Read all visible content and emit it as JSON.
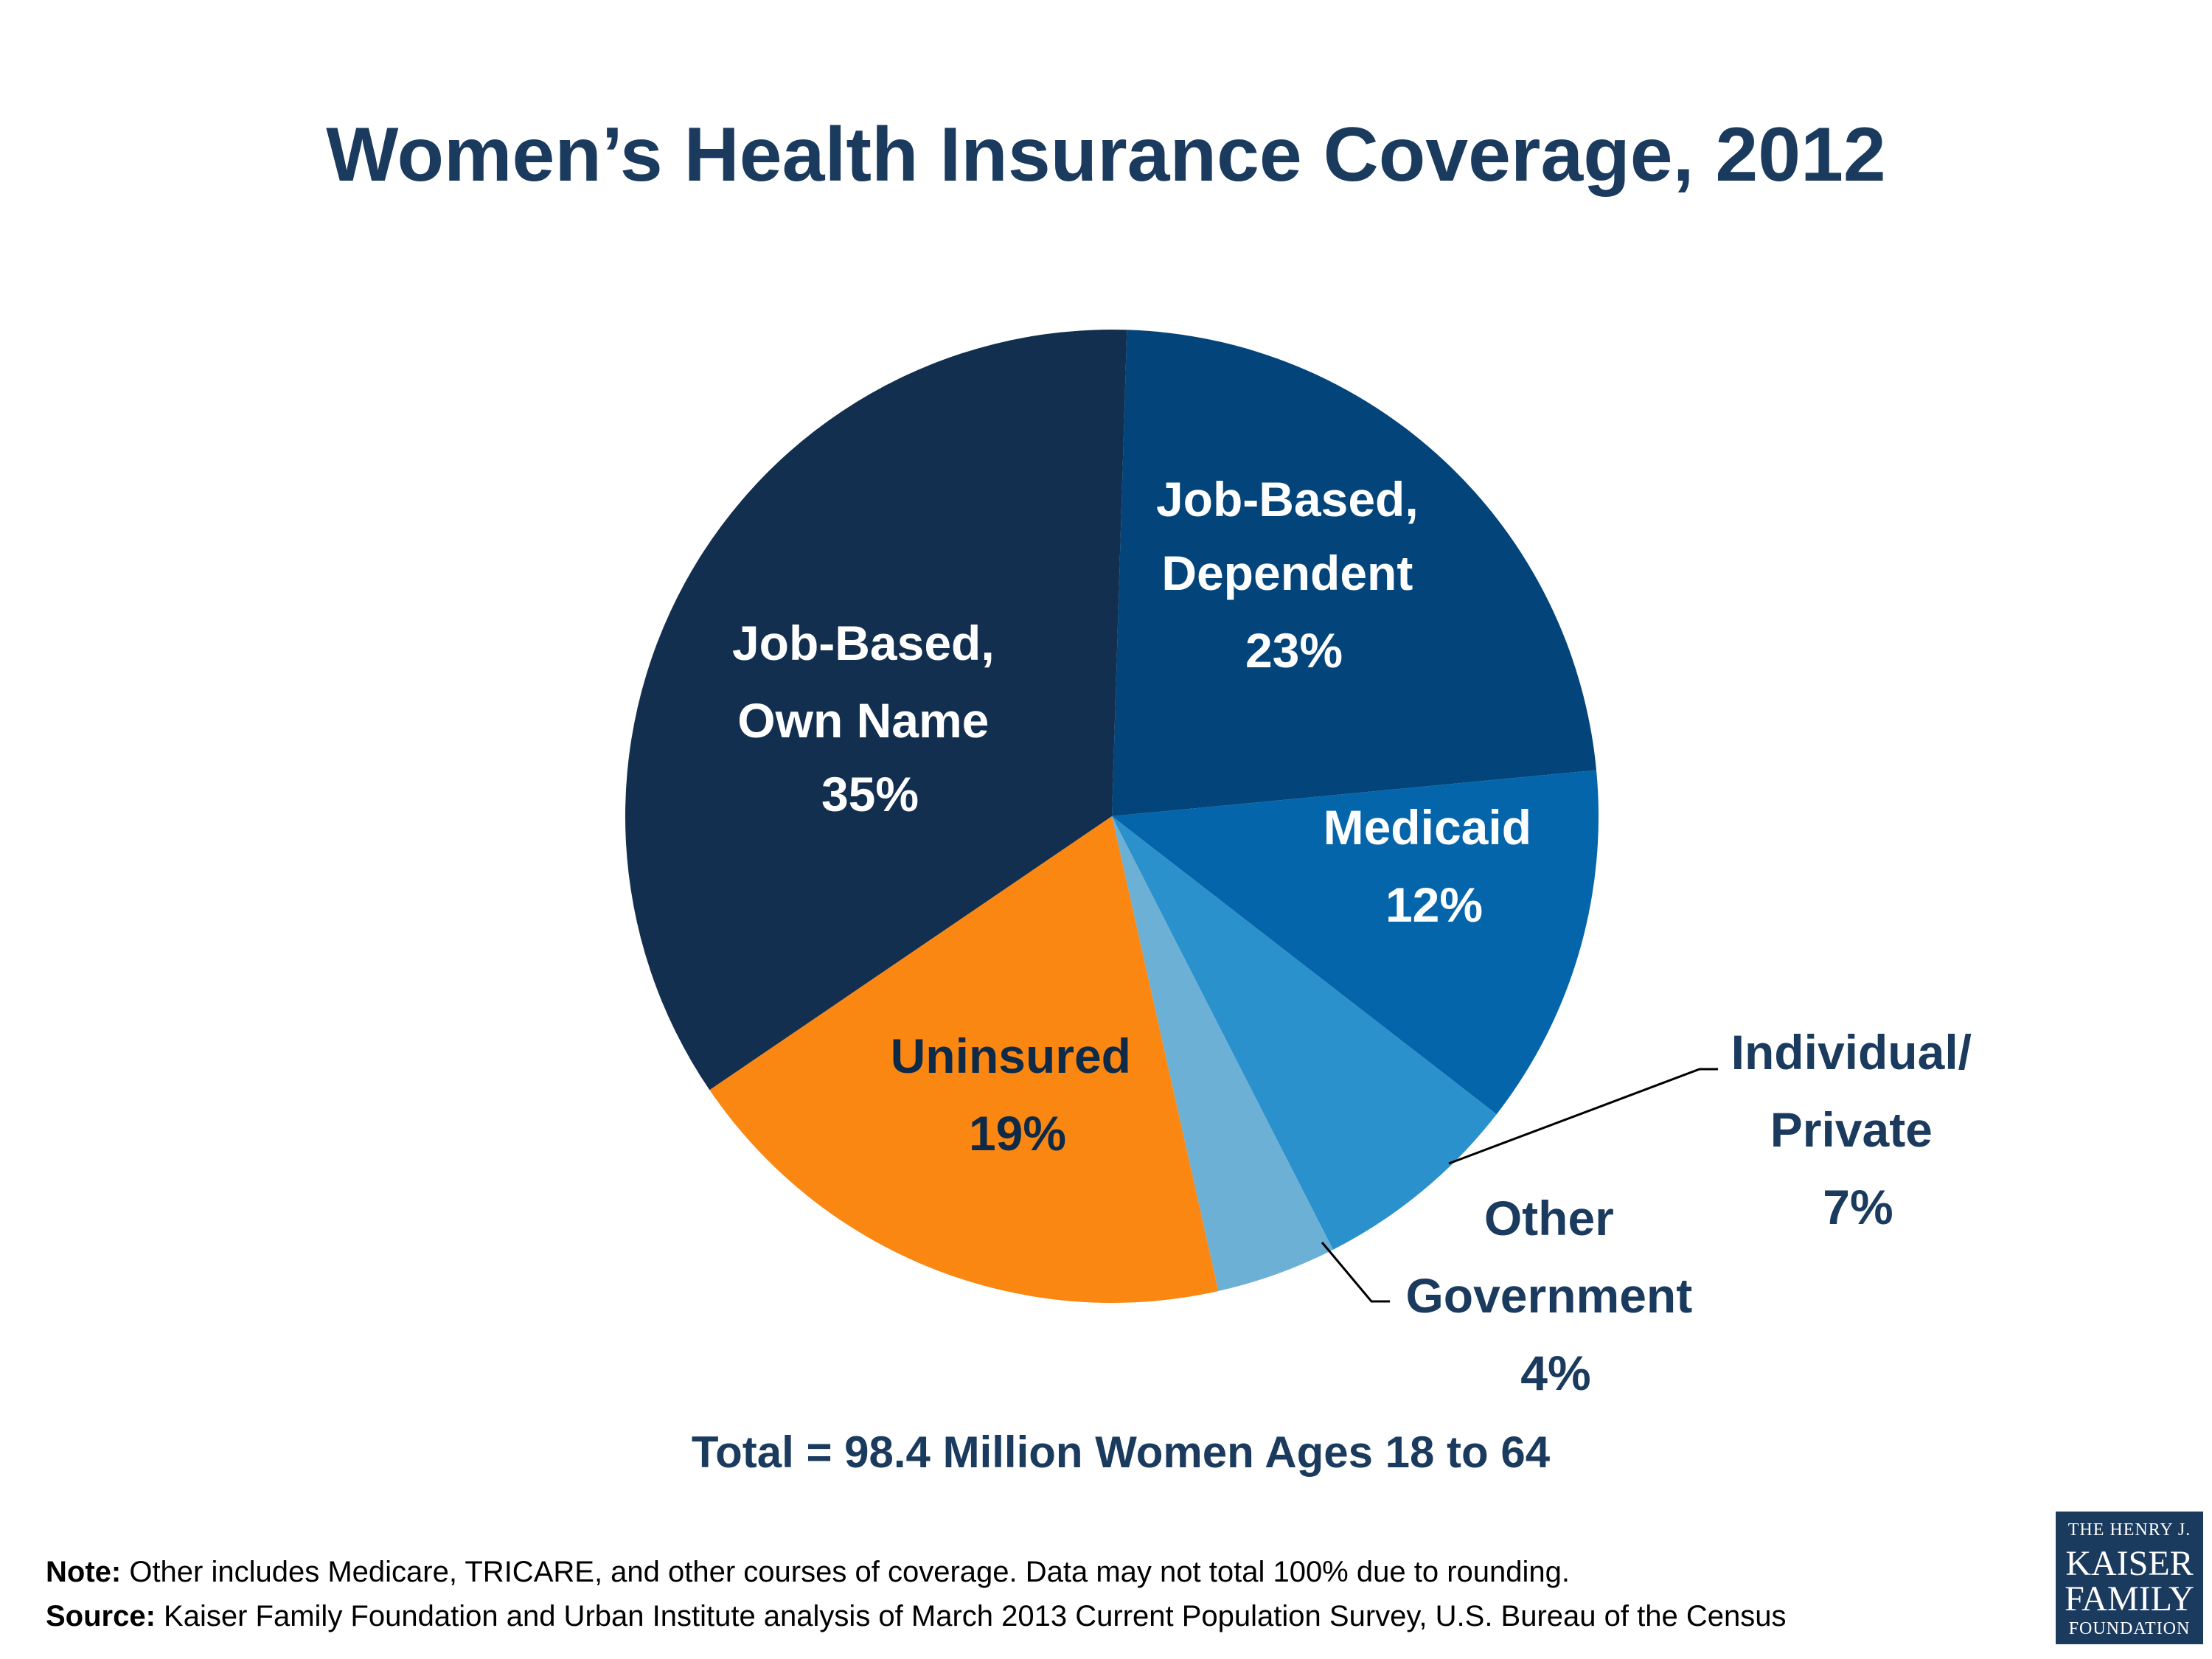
{
  "chart_data": {
    "type": "pie",
    "title": "Women’s Health Insurance Coverage, 2012",
    "categories": [
      "Job-Based, Dependent",
      "Medicaid",
      "Individual/ Private",
      "Other Government",
      "Uninsured",
      "Job-Based, Own Name"
    ],
    "values": [
      23,
      12,
      7,
      4,
      19,
      35
    ],
    "unit": "%",
    "slices": [
      {
        "name": "Job-Based, Dependent",
        "value": 23,
        "label_lines": [
          "Job-Based,",
          "Dependent",
          "23%"
        ],
        "color": "#03457a"
      },
      {
        "name": "Medicaid",
        "value": 12,
        "label_lines": [
          "Medicaid",
          "12%"
        ],
        "color": "#0565ab"
      },
      {
        "name": "Individual/Private",
        "value": 7,
        "label_lines": [
          "Individual/",
          "Private",
          "7%"
        ],
        "color": "#2a91cd"
      },
      {
        "name": "Other Government",
        "value": 4,
        "label_lines": [
          "Other",
          "Government",
          "4%"
        ],
        "color": "#6cb0d6"
      },
      {
        "name": "Uninsured",
        "value": 19,
        "label_lines": [
          "Uninsured",
          "19%"
        ],
        "color": "#fb8713"
      },
      {
        "name": "Job-Based, Own Name",
        "value": 35,
        "label_lines": [
          "Job-Based,",
          "Own Name",
          "35%"
        ],
        "color": "#132f4f"
      }
    ],
    "total_label": "Total = 98.4 Million Women Ages 18 to 64"
  },
  "footer": {
    "note_label": "Note:",
    "note_text": " Other includes Medicare, TRICARE, and other courses of coverage. Data may not total 100% due to rounding.",
    "source_label": "Source:",
    "source_text": " Kaiser Family Foundation and Urban Institute analysis of March 2013 Current Population Survey, U.S. Bureau of the Census"
  },
  "logo": {
    "line1": "THE HENRY J.",
    "line2": "KAISER",
    "line3": "FAMILY",
    "line4": "FOUNDATION"
  }
}
